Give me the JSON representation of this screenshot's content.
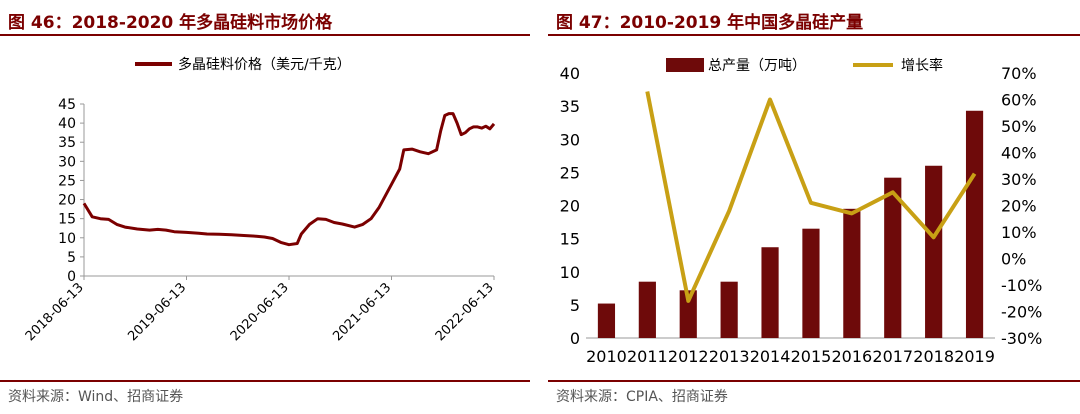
{
  "left": {
    "title": "图 46：2018-2020 年多晶硅料市场价格",
    "source": "资料来源：Wind、招商证券",
    "chart_data": {
      "type": "line",
      "series": [
        {
          "name": "多晶硅料价格（美元/千克）",
          "color": "#7b0000",
          "points": [
            [
              0.0,
              19.0
            ],
            [
              0.02,
              15.5
            ],
            [
              0.04,
              15.0
            ],
            [
              0.06,
              14.8
            ],
            [
              0.08,
              13.5
            ],
            [
              0.1,
              12.8
            ],
            [
              0.13,
              12.3
            ],
            [
              0.16,
              12.0
            ],
            [
              0.18,
              12.2
            ],
            [
              0.2,
              12.0
            ],
            [
              0.22,
              11.6
            ],
            [
              0.25,
              11.4
            ],
            [
              0.28,
              11.2
            ],
            [
              0.3,
              11.0
            ],
            [
              0.33,
              10.9
            ],
            [
              0.36,
              10.8
            ],
            [
              0.39,
              10.6
            ],
            [
              0.42,
              10.4
            ],
            [
              0.44,
              10.2
            ],
            [
              0.46,
              9.8
            ],
            [
              0.48,
              8.8
            ],
            [
              0.5,
              8.2
            ],
            [
              0.52,
              8.5
            ],
            [
              0.53,
              11.0
            ],
            [
              0.55,
              13.5
            ],
            [
              0.57,
              15.0
            ],
            [
              0.59,
              14.8
            ],
            [
              0.61,
              14.0
            ],
            [
              0.63,
              13.6
            ],
            [
              0.66,
              12.8
            ],
            [
              0.68,
              13.5
            ],
            [
              0.7,
              15.0
            ],
            [
              0.72,
              18.0
            ],
            [
              0.73,
              20.0
            ],
            [
              0.75,
              24.0
            ],
            [
              0.77,
              28.0
            ],
            [
              0.78,
              33.0
            ],
            [
              0.8,
              33.2
            ],
            [
              0.82,
              32.5
            ],
            [
              0.84,
              32.0
            ],
            [
              0.86,
              33.0
            ],
            [
              0.87,
              38.0
            ],
            [
              0.88,
              42.0
            ],
            [
              0.89,
              42.5
            ],
            [
              0.9,
              42.5
            ],
            [
              0.91,
              40.0
            ],
            [
              0.92,
              37.0
            ],
            [
              0.93,
              37.5
            ],
            [
              0.94,
              38.5
            ],
            [
              0.95,
              39.0
            ],
            [
              0.96,
              39.0
            ],
            [
              0.97,
              38.7
            ],
            [
              0.98,
              39.2
            ],
            [
              0.99,
              38.5
            ],
            [
              1.0,
              39.8
            ]
          ]
        }
      ],
      "xticks": [
        "2018-06-13",
        "2019-06-13",
        "2020-06-13",
        "2021-06-13",
        "2022-06-13"
      ],
      "yticks": [
        "0",
        "5",
        "10",
        "15",
        "20",
        "25",
        "30",
        "35",
        "40",
        "45"
      ],
      "ylim": [
        0,
        45
      ],
      "legend_position": "top-center"
    }
  },
  "right": {
    "title": "图 47：2010-2019 年中国多晶硅产量",
    "source": "资料来源：CPIA、招商证券",
    "chart_data": {
      "type": "bar+line",
      "categories": [
        "2010",
        "2011",
        "2012",
        "2013",
        "2014",
        "2015",
        "2016",
        "2017",
        "2018",
        "2019"
      ],
      "series": [
        {
          "name": "总产量（万吨）",
          "type": "bar",
          "axis": "left",
          "color": "#6e0a0a",
          "values": [
            5.2,
            8.5,
            7.2,
            8.5,
            13.7,
            16.5,
            19.5,
            24.2,
            26.0,
            34.3
          ]
        },
        {
          "name": "增长率",
          "type": "line",
          "axis": "right",
          "color": "#c8a015",
          "values": [
            null,
            63,
            -16,
            18,
            60,
            21,
            17,
            25,
            8,
            32
          ]
        }
      ],
      "yticks_left": [
        "0",
        "5",
        "10",
        "15",
        "20",
        "25",
        "30",
        "35",
        "40"
      ],
      "ylim_left": [
        0,
        40
      ],
      "yticks_right": [
        "-30%",
        "-20%",
        "-10%",
        "0%",
        "10%",
        "20%",
        "30%",
        "40%",
        "50%",
        "60%",
        "70%"
      ],
      "ylim_right": [
        -30,
        70
      ],
      "legend_position": "top-center"
    }
  }
}
